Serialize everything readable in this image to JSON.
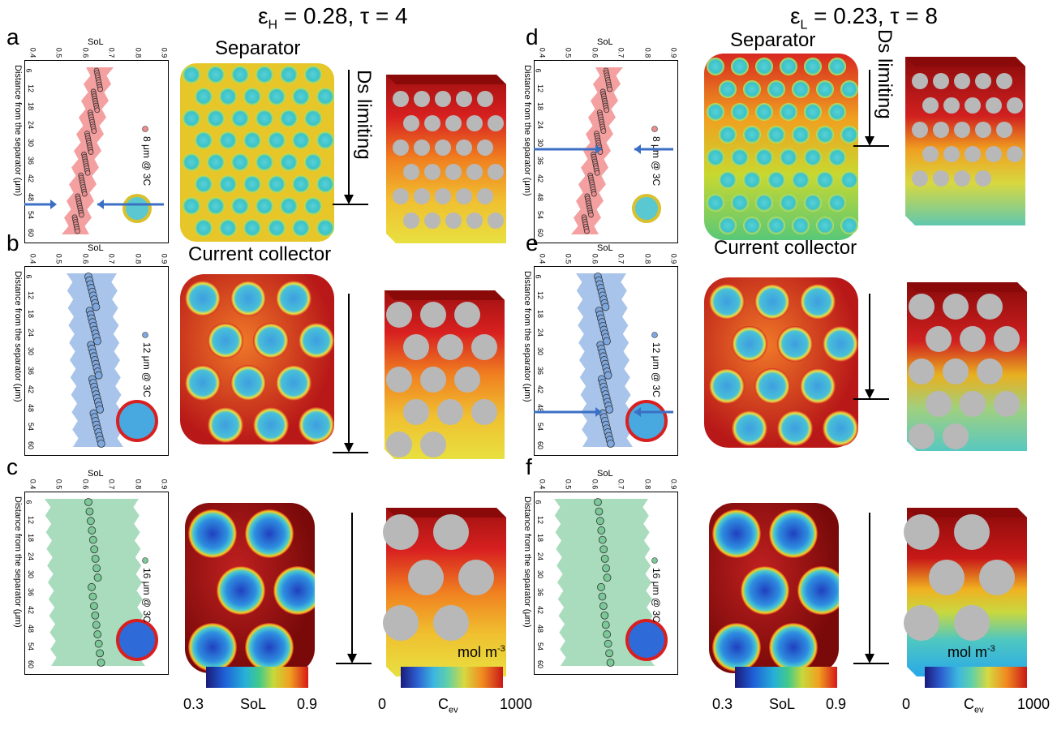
{
  "titles": {
    "left": "ε",
    "left_sub": "H",
    "left_rest": " = 0.28, τ = 4",
    "right": "ε",
    "right_sub": "L",
    "right_rest": " = 0.23, τ = 8"
  },
  "labels": {
    "separator": "Separator",
    "current_collector": "Current collector",
    "ds_limiting": "Ds limiting"
  },
  "colorbars": {
    "sol_min": "0.3",
    "sol_max": "0.9",
    "sol_label": "SoL",
    "cev_min": "0",
    "cev_max": "1000",
    "cev_label": "C",
    "cev_sub": "ev",
    "unit": "mol m",
    "unit_sup": "-3"
  },
  "plot_axes": {
    "x_title": "SoL",
    "x_ticks": [
      "0.4",
      "0.5",
      "0.6",
      "0.7",
      "0.8",
      "0.9"
    ],
    "y_title": "Distance from the separator (μm)",
    "y_ticks": [
      "6",
      "12",
      "18",
      "24",
      "30",
      "36",
      "42",
      "48",
      "54",
      "60"
    ]
  },
  "panels": [
    {
      "letter": "a",
      "legend": "8 μm @ 3C",
      "color": "#f4a0a0",
      "marker": "#e88e8e"
    },
    {
      "letter": "b",
      "legend": "12 μm @ 3C",
      "color": "#a8c4ea",
      "marker": "#7ea8df"
    },
    {
      "letter": "c",
      "legend": "16 μm @ 3C",
      "color": "#a8dcbc",
      "marker": "#7cc898"
    },
    {
      "letter": "d",
      "legend": "8 μm @ 3C",
      "color": "#f4a0a0",
      "marker": "#e88e8e"
    },
    {
      "letter": "e",
      "legend": "12 μm @ 3C",
      "color": "#a8c4ea",
      "marker": "#7ea8df"
    },
    {
      "letter": "f",
      "legend": "16 μm @ 3C",
      "color": "#a8dcbc",
      "marker": "#7cc898"
    }
  ]
}
